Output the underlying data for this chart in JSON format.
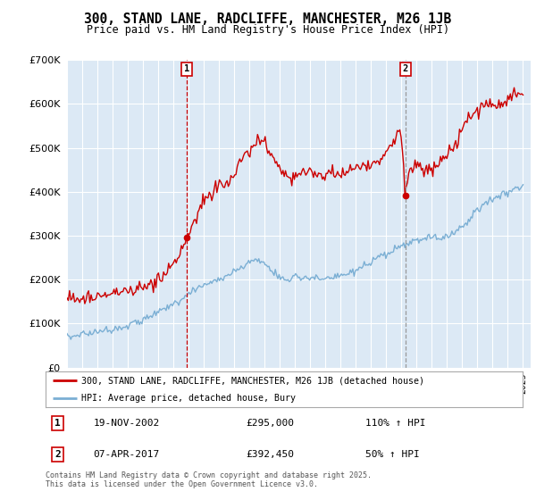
{
  "title": "300, STAND LANE, RADCLIFFE, MANCHESTER, M26 1JB",
  "subtitle": "Price paid vs. HM Land Registry's House Price Index (HPI)",
  "legend_line1": "300, STAND LANE, RADCLIFFE, MANCHESTER, M26 1JB (detached house)",
  "legend_line2": "HPI: Average price, detached house, Bury",
  "sale1_date": "19-NOV-2002",
  "sale1_price": 295000,
  "sale1_hpi": "110% ↑ HPI",
  "sale1_year": 2002.88,
  "sale2_date": "07-APR-2017",
  "sale2_price": 392450,
  "sale2_hpi": "50% ↑ HPI",
  "sale2_year": 2017.27,
  "red_line_color": "#cc0000",
  "blue_line_color": "#7bafd4",
  "background_color": "#dce9f5",
  "grid_color": "#ffffff",
  "fig_bg": "#ffffff",
  "ylim": [
    0,
    700000
  ],
  "yticks": [
    0,
    100000,
    200000,
    300000,
    400000,
    500000,
    600000,
    700000
  ],
  "ytick_labels": [
    "£0",
    "£100K",
    "£200K",
    "£300K",
    "£400K",
    "£500K",
    "£600K",
    "£700K"
  ],
  "copyright_text": "Contains HM Land Registry data © Crown copyright and database right 2025.\nThis data is licensed under the Open Government Licence v3.0."
}
